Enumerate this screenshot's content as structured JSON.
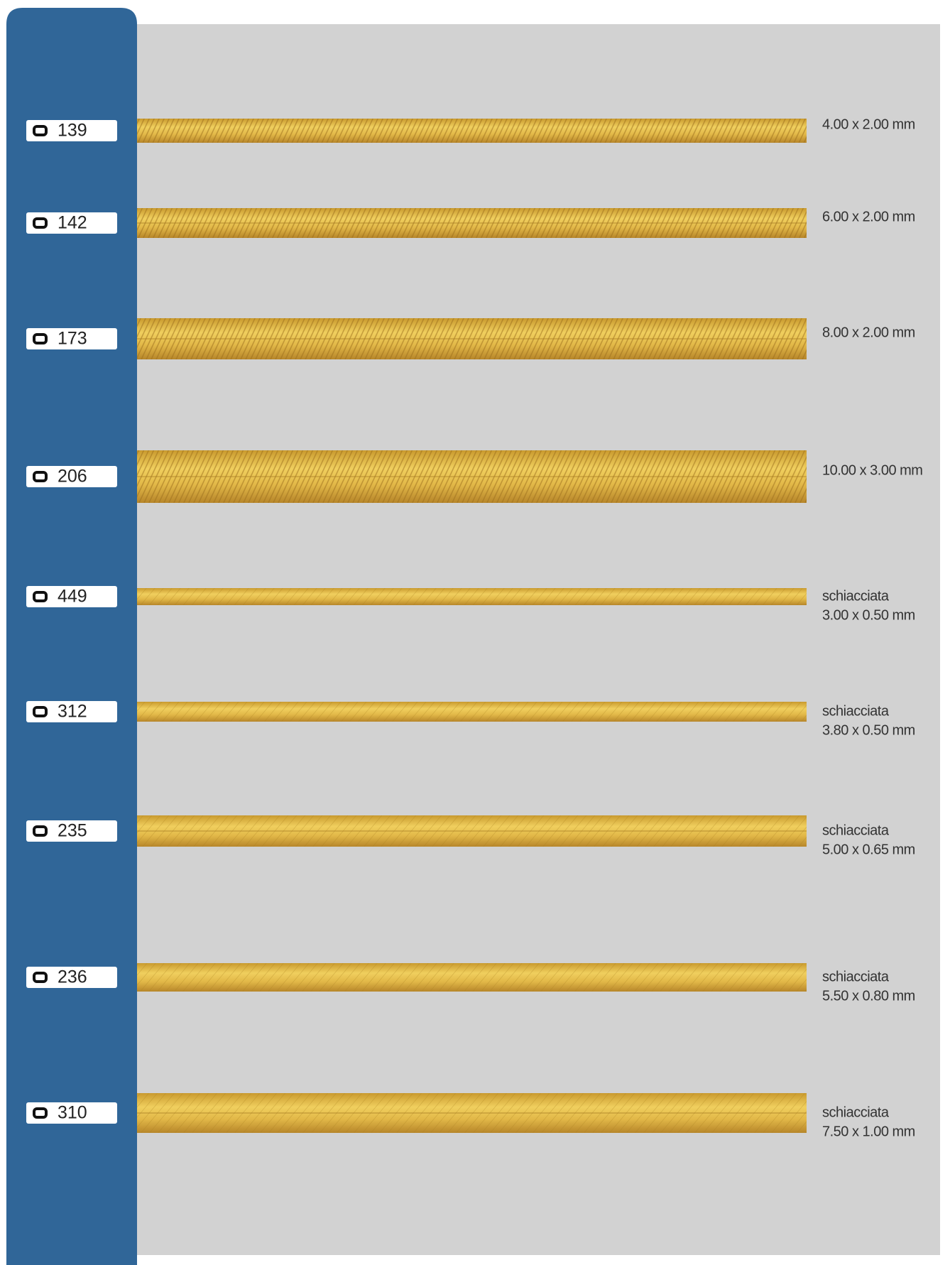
{
  "items": [
    {
      "code": "139",
      "spec": [
        "4.00 x 2.00 mm"
      ]
    },
    {
      "code": "142",
      "spec": [
        "6.00 x 2.00 mm"
      ]
    },
    {
      "code": "173",
      "spec": [
        "8.00 x 2.00 mm"
      ]
    },
    {
      "code": "206",
      "spec": [
        "10.00 x 3.00 mm"
      ]
    },
    {
      "code": "449",
      "spec": [
        "schiacciata",
        "3.00 x 0.50 mm"
      ]
    },
    {
      "code": "312",
      "spec": [
        "schiacciata",
        "3.80 x 0.50 mm"
      ]
    },
    {
      "code": "235",
      "spec": [
        "schiacciata",
        "5.00 x 0.65 mm"
      ]
    },
    {
      "code": "236",
      "spec": [
        "schiacciata",
        "5.50 x 0.80 mm"
      ]
    },
    {
      "code": "310",
      "spec": [
        "schiacciata",
        "7.50 x 1.00 mm"
      ]
    }
  ]
}
